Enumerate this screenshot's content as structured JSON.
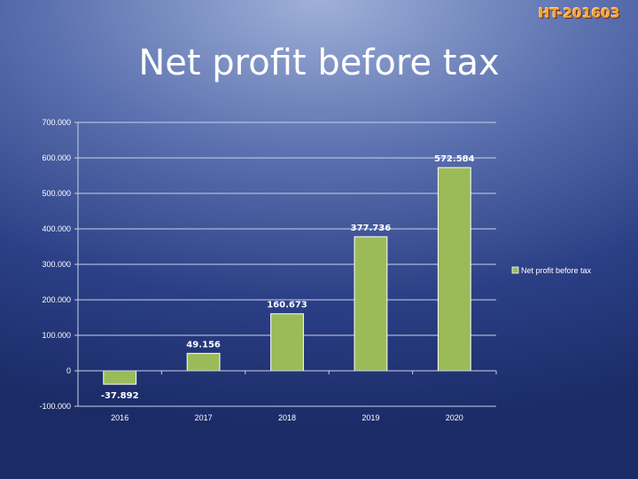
{
  "badge": "HT-201603",
  "chart_data": {
    "type": "bar",
    "title": "Net profit before tax",
    "categories": [
      "2016",
      "2017",
      "2018",
      "2019",
      "2020"
    ],
    "series": [
      {
        "name": "Net profit before tax",
        "values": [
          -37.892,
          49.156,
          160.673,
          377.736,
          572.584
        ],
        "value_labels": [
          "-37.892",
          "49.156",
          "160.673",
          "377.736",
          "572.584"
        ],
        "color": "#9bbb59"
      }
    ],
    "yticks": [
      -100,
      0,
      100,
      200,
      300,
      400,
      500,
      600,
      700
    ],
    "ytick_labels": [
      "-100.000",
      "0",
      "100.000",
      "200.000",
      "300.000",
      "400.000",
      "500.000",
      "600.000",
      "700.000"
    ],
    "ylim": [
      -100,
      700
    ],
    "grid": true,
    "legend_position": "right"
  }
}
